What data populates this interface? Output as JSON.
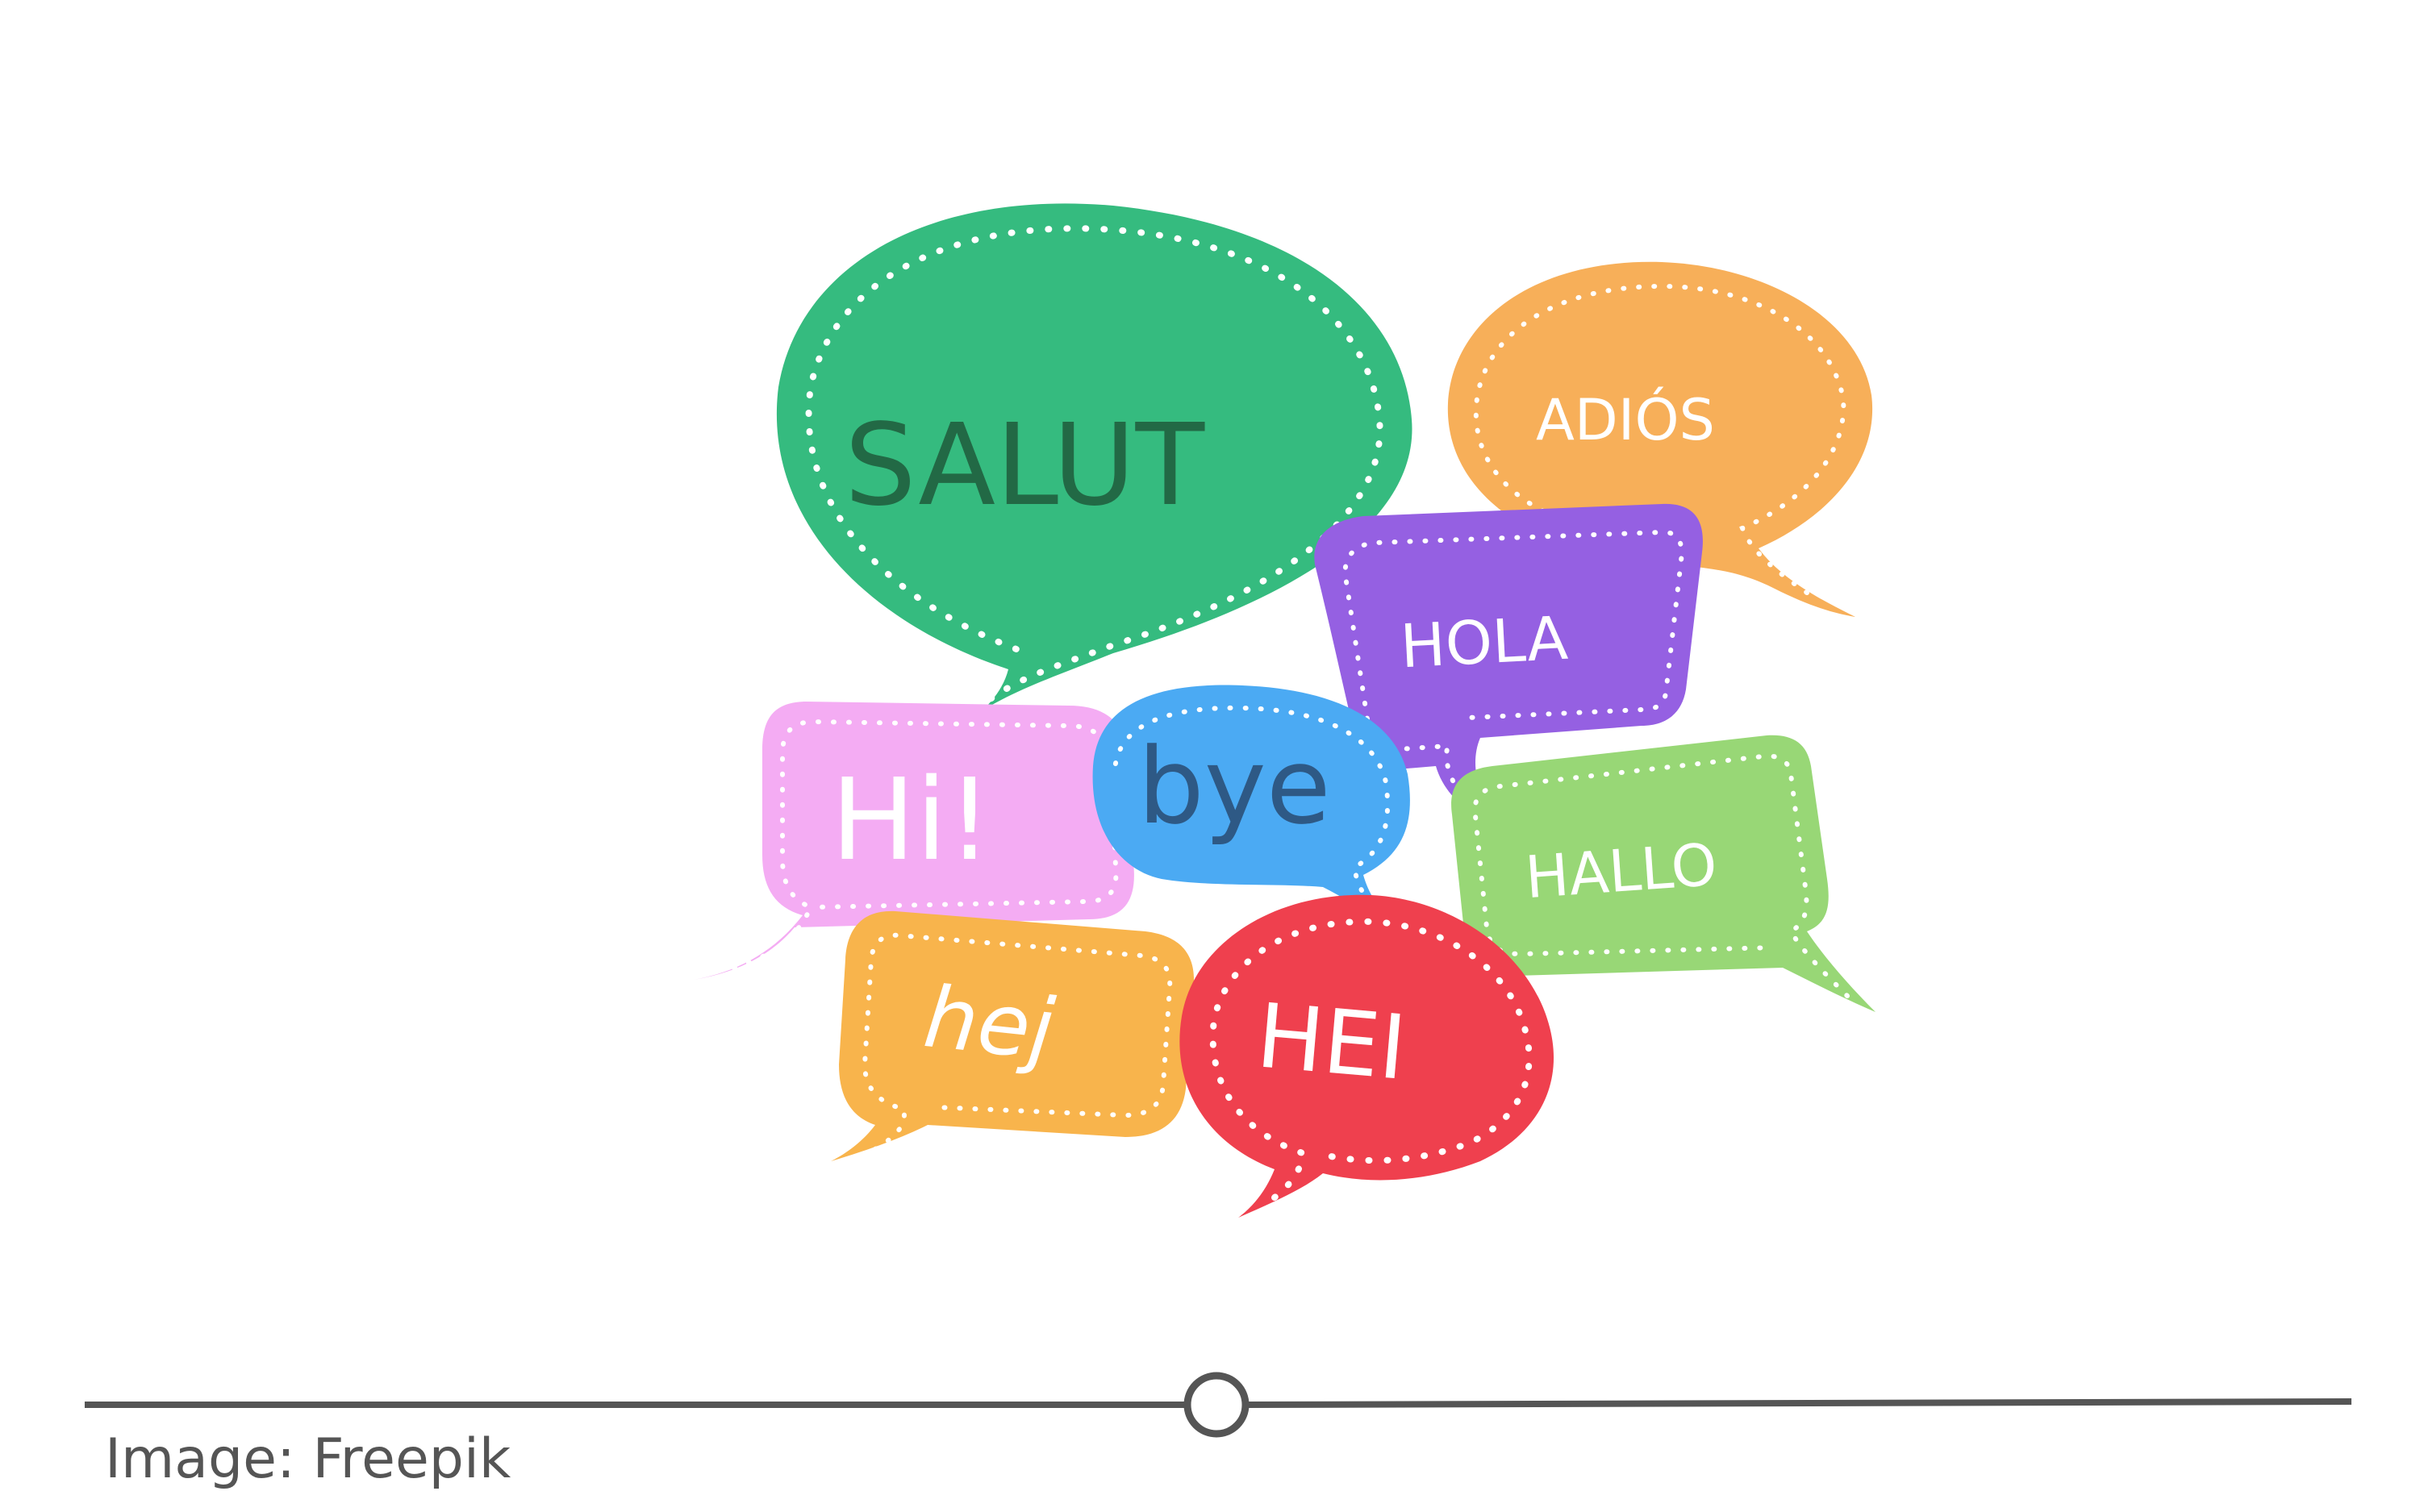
{
  "bubbles": {
    "salut": {
      "label": "SALUT",
      "color": "#22b573",
      "text_color": "#0e5b34"
    },
    "adios": {
      "label": "ADIÓS",
      "color": "#f7a84a",
      "text_color": "#ffffff"
    },
    "hola": {
      "label": "HOLA",
      "color": "#8c52e0",
      "text_color": "#ffffff"
    },
    "hi": {
      "label": "Hi!",
      "color": "#f3a5f2",
      "text_color": "#ffffff"
    },
    "bye": {
      "label": "bye",
      "color": "#3aa2f2",
      "text_color": "#1b4a7a"
    },
    "hallo": {
      "label": "HALLO",
      "color": "#8fd46a",
      "text_color": "#ffffff"
    },
    "hej": {
      "label": "hej",
      "color": "#f8ad3c",
      "text_color": "#ffffff"
    },
    "hei": {
      "label": "HEI",
      "color": "#ee2f3e",
      "text_color": "#ffffff"
    }
  },
  "slider": {
    "value": 0.5,
    "line_color": "#555555"
  },
  "credit": "Image: Freepik"
}
